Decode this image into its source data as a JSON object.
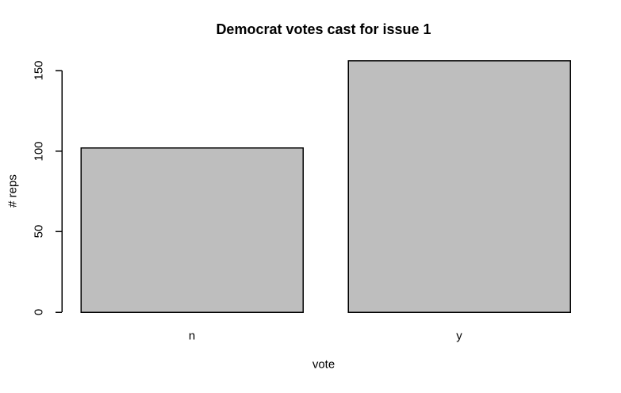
{
  "chart_data": {
    "type": "bar",
    "title": "Democrat votes cast for issue 1",
    "xlabel": "vote",
    "ylabel": "# reps",
    "categories": [
      "n",
      "y"
    ],
    "values": [
      102,
      156
    ],
    "yticks": [
      0,
      50,
      100,
      150
    ],
    "ylim": [
      0,
      160
    ],
    "grid": false,
    "legend_position": "none",
    "bar_fill_color": "#bebebe",
    "bar_border_color": "#000000",
    "axis_color": "#000000",
    "background_color": "#ffffff"
  }
}
